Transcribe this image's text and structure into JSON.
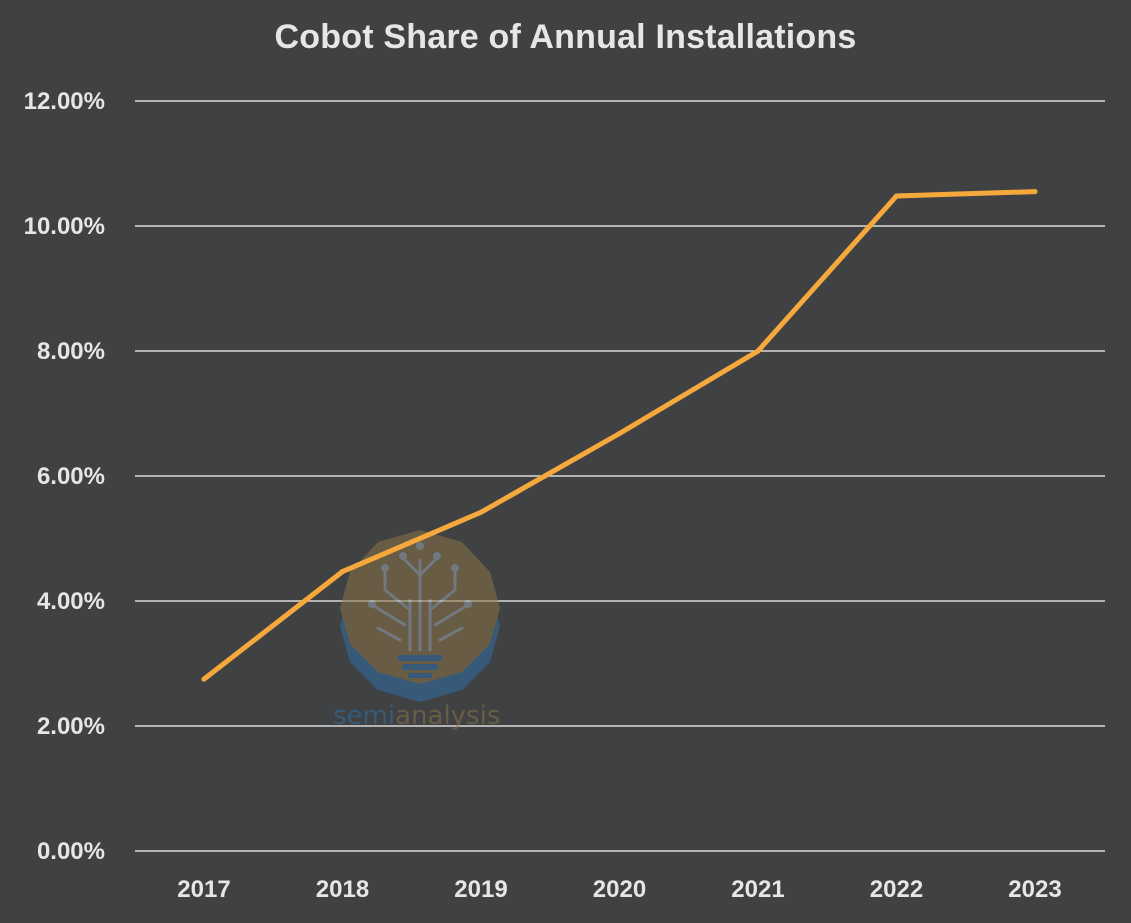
{
  "chart_data": {
    "type": "line",
    "title": "Cobot Share of Annual Installations",
    "xlabel": "",
    "ylabel": "",
    "categories": [
      "2017",
      "2018",
      "2019",
      "2020",
      "2021",
      "2022",
      "2023"
    ],
    "series": [
      {
        "values": [
          2.75,
          4.47,
          5.42,
          6.68,
          8.0,
          10.48,
          10.55
        ],
        "color": "#f5a93c"
      }
    ],
    "ylim": [
      0,
      12
    ],
    "yticks": [
      0,
      2,
      4,
      6,
      8,
      10,
      12
    ],
    "ytick_labels": [
      "0.00%",
      "2.00%",
      "4.00%",
      "6.00%",
      "8.00%",
      "10.00%",
      "12.00%"
    ],
    "grid": true,
    "legend": "none"
  },
  "watermark": {
    "text_part1": "semi",
    "text_part2": "analysis",
    "color_part1": "#2f6fa3",
    "color_part2": "#8a7445",
    "icon": "tree-circuit-lightbulb-icon"
  },
  "colors": {
    "background": "#404143",
    "gridline": "#d9d9d9",
    "text": "#e6e6e6"
  }
}
